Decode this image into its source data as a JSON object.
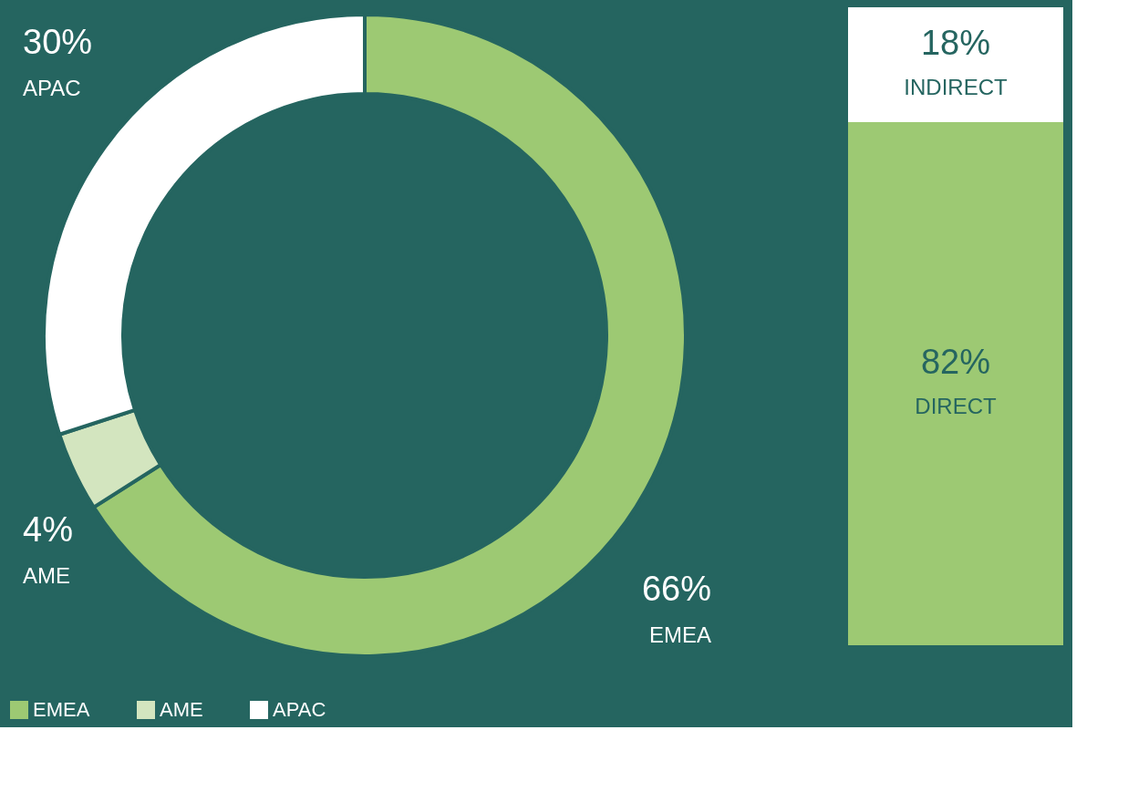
{
  "chart_data": [
    {
      "type": "donut",
      "categories": [
        "EMEA",
        "AME",
        "APAC"
      ],
      "values": [
        66,
        4,
        30
      ],
      "colors": [
        "#9dc973",
        "#d3e5bf",
        "#ffffff"
      ],
      "value_labels": [
        "66%",
        "4%",
        "30%"
      ],
      "legend": "bottom"
    },
    {
      "type": "bar",
      "stacked": true,
      "categories": [
        null
      ],
      "tick_labels": false,
      "series": [
        {
          "name": "DIRECT",
          "color": "#9dc973",
          "values": [
            82
          ],
          "value_labels": [
            "82%"
          ]
        },
        {
          "name": "INDIRECT",
          "color": "#ffffff",
          "values": [
            18
          ],
          "value_labels": [
            "18%"
          ]
        }
      ]
    }
  ]
}
